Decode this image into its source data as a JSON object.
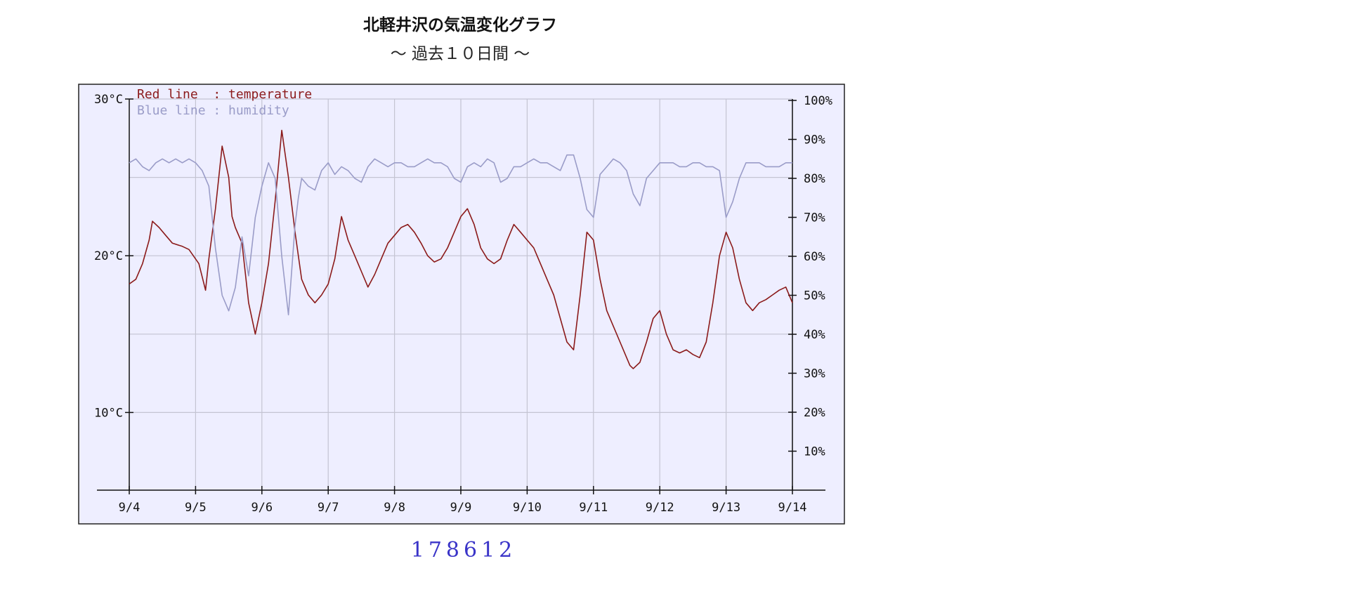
{
  "page": {
    "title": "北軽井沢の気温変化グラフ",
    "subtitle": "～ 過去１０日間 ～",
    "counter": "178612"
  },
  "chart_data": {
    "type": "line",
    "title": "北軽井沢の気温変化グラフ",
    "subtitle": "～ 過去１０日間 ～",
    "legend": [
      "Red line  : temperature",
      "Blue line : humidity"
    ],
    "legend_placement": "top-left",
    "grid": true,
    "x_categories": [
      "9/4",
      "9/5",
      "9/6",
      "9/7",
      "9/8",
      "9/9",
      "9/10",
      "9/11",
      "9/12",
      "9/13",
      "9/14"
    ],
    "y_left": {
      "range": [
        5,
        30
      ],
      "ticks": [
        10,
        20,
        30
      ],
      "tick_labels": [
        "10°C",
        "20°C",
        "30°C"
      ]
    },
    "y_right": {
      "range": [
        0,
        100
      ],
      "ticks": [
        10,
        20,
        30,
        40,
        50,
        60,
        70,
        80,
        90,
        100
      ],
      "tick_labels": [
        "10%",
        "20%",
        "30%",
        "40%",
        "50%",
        "60%",
        "70%",
        "80%",
        "90%",
        "100%"
      ]
    },
    "colors": {
      "temperature": "#8b1a1a",
      "humidity": "#9a9cc8",
      "grid": "#c4c4d2",
      "background": "#eeeeff"
    },
    "series": [
      {
        "name": "temperature",
        "axis": "left",
        "x": [
          0,
          0.1,
          0.2,
          0.3,
          0.35,
          0.45,
          0.55,
          0.65,
          0.8,
          0.9,
          1.05,
          1.15,
          1.2,
          1.3,
          1.4,
          1.5,
          1.55,
          1.6,
          1.7,
          1.8,
          1.9,
          2.0,
          2.1,
          2.2,
          2.3,
          2.4,
          2.5,
          2.55,
          2.6,
          2.7,
          2.8,
          2.9,
          3.0,
          3.1,
          3.2,
          3.3,
          3.4,
          3.5,
          3.6,
          3.7,
          3.8,
          3.9,
          4.0,
          4.1,
          4.2,
          4.3,
          4.4,
          4.5,
          4.6,
          4.7,
          4.8,
          4.9,
          5.0,
          5.1,
          5.2,
          5.3,
          5.4,
          5.5,
          5.6,
          5.7,
          5.8,
          5.9,
          6.0,
          6.1,
          6.2,
          6.3,
          6.4,
          6.5,
          6.6,
          6.7,
          6.8,
          6.9,
          7.0,
          7.1,
          7.2,
          7.3,
          7.4,
          7.5,
          7.55,
          7.6,
          7.7,
          7.8,
          7.9,
          8.0,
          8.1,
          8.2,
          8.3,
          8.4,
          8.5,
          8.6,
          8.7,
          8.8,
          8.9,
          9.0,
          9.1,
          9.2,
          9.3,
          9.4,
          9.5,
          9.6,
          9.7,
          9.8,
          9.9,
          10.0
        ],
        "values": [
          18.2,
          18.5,
          19.5,
          21.0,
          22.2,
          21.8,
          21.3,
          20.8,
          20.6,
          20.4,
          19.5,
          17.8,
          19.8,
          23.0,
          27.0,
          25.0,
          22.5,
          21.8,
          20.8,
          17.0,
          15.0,
          17.0,
          19.5,
          23.5,
          28.0,
          25.0,
          21.5,
          20.0,
          18.5,
          17.5,
          17.0,
          17.5,
          18.2,
          19.8,
          22.5,
          21.0,
          20.0,
          19.0,
          18.0,
          18.8,
          19.8,
          20.8,
          21.3,
          21.8,
          22.0,
          21.5,
          20.8,
          20.0,
          19.6,
          19.8,
          20.5,
          21.5,
          22.5,
          23.0,
          22.0,
          20.5,
          19.8,
          19.5,
          19.8,
          21.0,
          22.0,
          21.5,
          21.0,
          20.5,
          19.5,
          18.5,
          17.5,
          16.0,
          14.5,
          14.0,
          17.5,
          21.5,
          21.0,
          18.5,
          16.5,
          15.5,
          14.5,
          13.5,
          13.0,
          12.8,
          13.2,
          14.5,
          16.0,
          16.5,
          15.0,
          14.0,
          13.8,
          14.0,
          13.7,
          13.5,
          14.5,
          17.0,
          20.0,
          21.5,
          20.5,
          18.5,
          17.0,
          16.5,
          17.0,
          17.2,
          17.5,
          17.8,
          18.0,
          17.0
        ]
      },
      {
        "name": "humidity",
        "axis": "right",
        "x": [
          0,
          0.1,
          0.2,
          0.3,
          0.4,
          0.5,
          0.6,
          0.7,
          0.8,
          0.9,
          1.0,
          1.1,
          1.2,
          1.3,
          1.4,
          1.45,
          1.5,
          1.6,
          1.7,
          1.8,
          1.9,
          2.0,
          2.1,
          2.2,
          2.3,
          2.4,
          2.5,
          2.55,
          2.6,
          2.7,
          2.8,
          2.9,
          3.0,
          3.1,
          3.2,
          3.3,
          3.4,
          3.5,
          3.6,
          3.7,
          3.8,
          3.9,
          4.0,
          4.1,
          4.2,
          4.3,
          4.4,
          4.5,
          4.6,
          4.7,
          4.8,
          4.9,
          5.0,
          5.1,
          5.2,
          5.3,
          5.4,
          5.5,
          5.6,
          5.7,
          5.8,
          5.9,
          6.0,
          6.1,
          6.2,
          6.3,
          6.4,
          6.5,
          6.6,
          6.7,
          6.8,
          6.9,
          7.0,
          7.1,
          7.2,
          7.3,
          7.4,
          7.5,
          7.6,
          7.7,
          7.8,
          7.9,
          8.0,
          8.1,
          8.2,
          8.3,
          8.4,
          8.5,
          8.6,
          8.7,
          8.8,
          8.9,
          9.0,
          9.1,
          9.2,
          9.3,
          9.4,
          9.5,
          9.6,
          9.7,
          9.8,
          9.9,
          10.0
        ],
        "values": [
          84,
          85,
          83,
          82,
          84,
          85,
          84,
          85,
          84,
          85,
          84,
          82,
          78,
          62,
          50,
          48,
          46,
          52,
          65,
          55,
          70,
          78,
          84,
          80,
          60,
          45,
          68,
          75,
          80,
          78,
          77,
          82,
          84,
          81,
          83,
          82,
          80,
          79,
          83,
          85,
          84,
          83,
          84,
          84,
          83,
          83,
          84,
          85,
          84,
          84,
          83,
          80,
          79,
          83,
          84,
          83,
          85,
          84,
          79,
          80,
          83,
          83,
          84,
          85,
          84,
          84,
          83,
          82,
          86,
          86,
          80,
          72,
          70,
          81,
          83,
          85,
          84,
          82,
          76,
          73,
          80,
          82,
          84,
          84,
          84,
          83,
          83,
          84,
          84,
          83,
          83,
          82,
          70,
          74,
          80,
          84,
          84,
          84,
          83,
          83,
          83,
          84,
          84
        ]
      }
    ]
  }
}
